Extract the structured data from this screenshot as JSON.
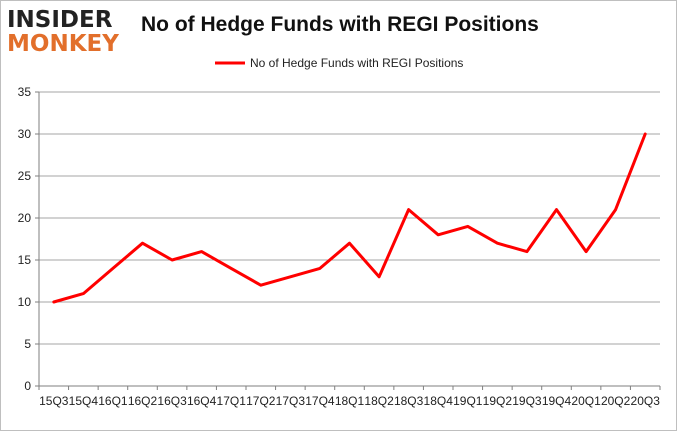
{
  "logo": {
    "line1": "INSIDER",
    "line2": "MONKEY"
  },
  "chart_data": {
    "type": "line",
    "title": "No of Hedge Funds with REGI Positions",
    "xlabel": "",
    "ylabel": "",
    "ylim": [
      0,
      35
    ],
    "yticks": [
      0,
      5,
      10,
      15,
      20,
      25,
      30,
      35
    ],
    "grid": true,
    "legend": "top-center",
    "categories": [
      "15Q3",
      "15Q4",
      "16Q1",
      "16Q2",
      "16Q3",
      "16Q4",
      "17Q1",
      "17Q2",
      "17Q3",
      "17Q4",
      "18Q1",
      "18Q2",
      "18Q3",
      "18Q4",
      "19Q1",
      "19Q2",
      "19Q3",
      "19Q4",
      "20Q1",
      "20Q2",
      "20Q3"
    ],
    "series": [
      {
        "name": "No of Hedge Funds with REGI Positions",
        "color": "#ff0000",
        "values": [
          10,
          11,
          14,
          17,
          15,
          16,
          14,
          12,
          13,
          14,
          17,
          13,
          21,
          18,
          19,
          17,
          16,
          21,
          16,
          21,
          30
        ]
      }
    ]
  }
}
